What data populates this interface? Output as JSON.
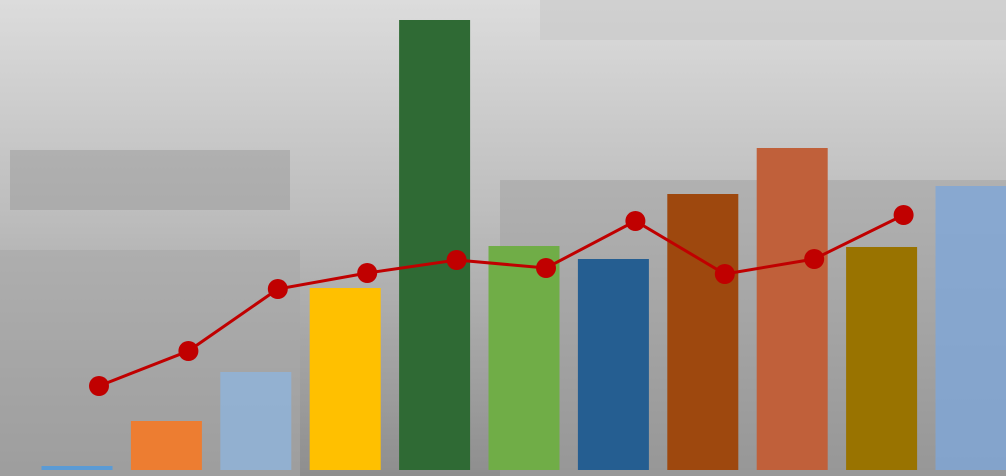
{
  "chart_data": {
    "type": "bar",
    "categories": [
      null,
      null,
      null,
      null,
      null,
      null,
      null,
      null,
      null,
      null,
      null
    ],
    "ylim": [
      0,
      470
    ],
    "series": [
      {
        "type": "bar",
        "colors": [
          "#5b9bd5",
          "#ed7d31",
          "#8fb4dc",
          "#ffc000",
          "#2f6a34",
          "#70ad47",
          "#255e91",
          "#9e480e",
          "#c0603a",
          "#997300",
          "#7ea6d8"
        ],
        "values": [
          4,
          49,
          98,
          182,
          450,
          224,
          211,
          276,
          322,
          223,
          284
        ]
      },
      {
        "type": "line",
        "color": "#c00000",
        "values": [
          84,
          119,
          181,
          197,
          210,
          202,
          249,
          196,
          211,
          255,
          null
        ]
      }
    ]
  }
}
